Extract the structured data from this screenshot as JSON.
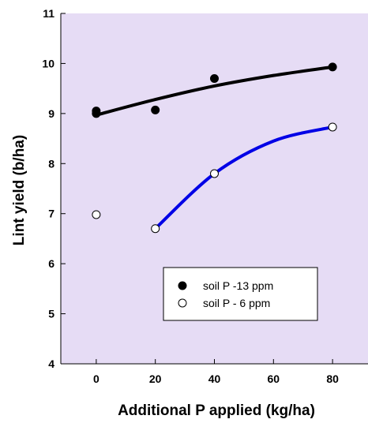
{
  "chart_data": {
    "type": "scatter",
    "xlabel": "Additional P applied (kg/ha)",
    "ylabel": "Lint yield (b/ha)",
    "xlim": [
      -12,
      92
    ],
    "ylim": [
      4,
      11
    ],
    "xticks": [
      0,
      20,
      40,
      60,
      80
    ],
    "yticks": [
      4,
      5,
      6,
      7,
      8,
      9,
      10,
      11
    ],
    "x_tick_labels": [
      "0",
      "20",
      "40",
      "60",
      "80"
    ],
    "y_tick_labels": [
      "4",
      "5",
      "6",
      "7",
      "8",
      "9",
      "10",
      "11"
    ],
    "plot_background": "#e6dcf5",
    "grid": false,
    "legend_position": "bottom-center",
    "series": [
      {
        "name": "soil P -13 ppm",
        "marker": "filled-circle",
        "color": "#000000",
        "points": [
          {
            "x": 0,
            "y": 9.05
          },
          {
            "x": 0,
            "y": 9.0
          },
          {
            "x": 20,
            "y": 9.07
          },
          {
            "x": 40,
            "y": 9.7
          },
          {
            "x": 80,
            "y": 9.93
          }
        ],
        "fit": {
          "color": "#000000",
          "x_range": [
            0,
            80
          ],
          "curve": [
            {
              "x": 0,
              "y": 8.97
            },
            {
              "x": 20,
              "y": 9.28
            },
            {
              "x": 40,
              "y": 9.55
            },
            {
              "x": 60,
              "y": 9.76
            },
            {
              "x": 80,
              "y": 9.93
            }
          ]
        }
      },
      {
        "name": "soil P - 6 ppm",
        "marker": "open-circle",
        "color": "#000000",
        "points": [
          {
            "x": 0,
            "y": 6.98
          },
          {
            "x": 20,
            "y": 6.7
          },
          {
            "x": 40,
            "y": 7.8
          },
          {
            "x": 80,
            "y": 8.73
          }
        ],
        "fit": {
          "color": "#0000e6",
          "x_range": [
            20,
            80
          ],
          "curve": [
            {
              "x": 20,
              "y": 6.7
            },
            {
              "x": 40,
              "y": 7.8
            },
            {
              "x": 60,
              "y": 8.45
            },
            {
              "x": 80,
              "y": 8.73
            }
          ]
        }
      }
    ]
  }
}
